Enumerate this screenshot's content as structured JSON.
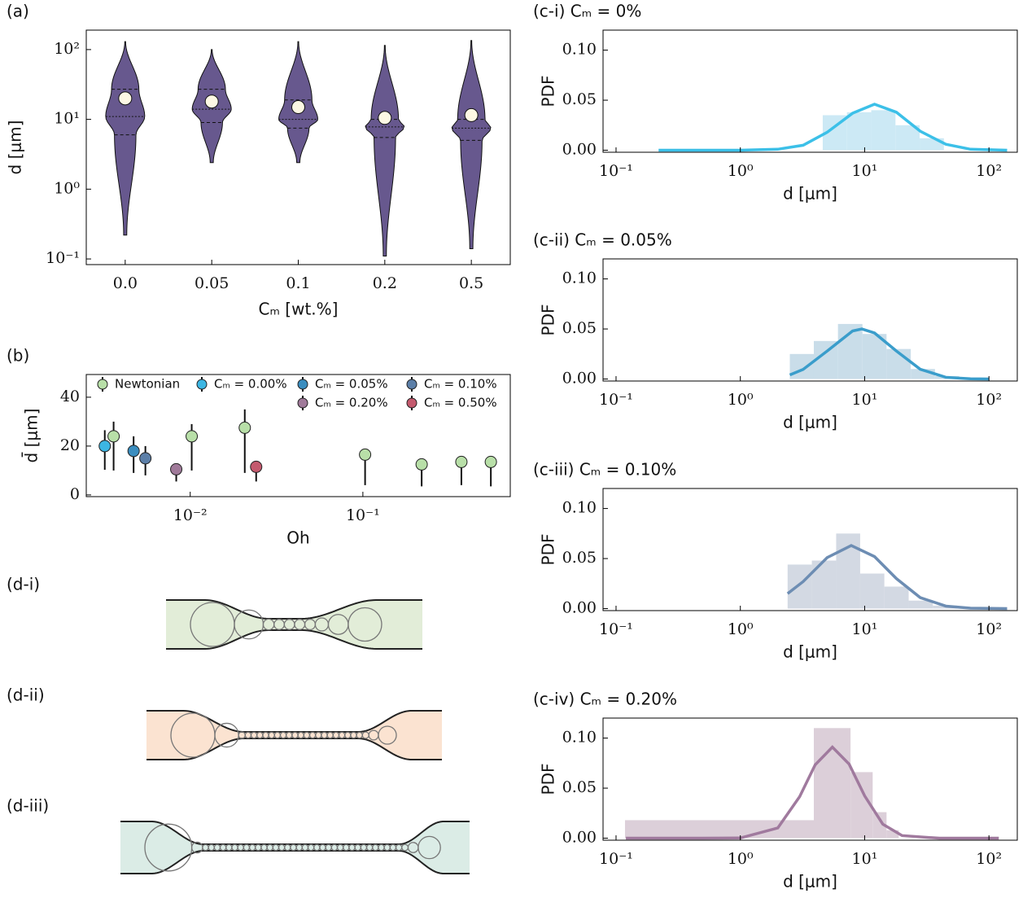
{
  "chart_data": [
    {
      "type": "violin",
      "label": "(a)",
      "xlabel": "Cₘ [wt.%]",
      "ylabel": "d [μm]",
      "categories": [
        "0.0",
        "0.05",
        "0.1",
        "0.2",
        "0.5"
      ],
      "log_y": true,
      "ylim": [
        0.083,
        190
      ],
      "yticks": [
        {
          "value": 0.1,
          "label": "10⁻¹"
        },
        {
          "value": 1,
          "label": "10⁰"
        },
        {
          "value": 10,
          "label": "10¹"
        },
        {
          "value": 100,
          "label": "10²"
        }
      ],
      "color": "#67588e",
      "mean_color": "#fdf8e4",
      "min": [
        0.22,
        2.4,
        2.4,
        0.11,
        0.14
      ],
      "q1": [
        6,
        9,
        7.5,
        5.5,
        5
      ],
      "median": [
        11,
        14,
        10,
        7.8,
        7.5
      ],
      "q3": [
        27,
        27,
        19,
        10,
        10
      ],
      "max": [
        130,
        100,
        130,
        115,
        135
      ],
      "mean": [
        20,
        18,
        15,
        10.5,
        11.5
      ]
    },
    {
      "type": "errorbar",
      "label": "(b)",
      "xlabel": "Oh",
      "ylabel": "d̄ [μm]",
      "log_x": true,
      "xlim": [
        0.0025,
        0.714
      ],
      "xticks": [
        {
          "value": 0.01,
          "label": "10⁻²"
        },
        {
          "value": 0.1,
          "label": "10⁻¹"
        }
      ],
      "ylim": [
        -0.7,
        49.3
      ],
      "yticks": [
        0,
        20,
        40
      ],
      "legend": "top",
      "series": [
        {
          "name": "Newtonian",
          "color": "#b8dfa8",
          "x": [
            0.0036,
            0.0102,
            0.0207,
            0.103,
            0.219,
            0.372,
            0.551
          ],
          "values": [
            24,
            24,
            27.5,
            16.5,
            12.5,
            13.5,
            13.5
          ],
          "err_low": [
            14,
            14,
            18.5,
            12.5,
            9,
            9.5,
            10
          ],
          "err_high": [
            6,
            5,
            7.5,
            0,
            0,
            0,
            0
          ]
        },
        {
          "name": "Cₘ = 0.00%",
          "color": "#3cb6e3",
          "x": [
            0.0032
          ],
          "values": [
            20
          ],
          "err_low": [
            9.7
          ],
          "err_high": [
            6.5
          ]
        },
        {
          "name": "Cₘ = 0.05%",
          "color": "#3a8dbf",
          "x": [
            0.0047
          ],
          "values": [
            18
          ],
          "err_low": [
            9
          ],
          "err_high": [
            6
          ]
        },
        {
          "name": "Cₘ = 0.10%",
          "color": "#5c7fa8",
          "x": [
            0.0055
          ],
          "values": [
            15
          ],
          "err_low": [
            7
          ],
          "err_high": [
            5
          ]
        },
        {
          "name": "Cₘ = 0.20%",
          "color": "#a07a9a",
          "x": [
            0.0083
          ],
          "values": [
            10.5
          ],
          "err_low": [
            5
          ],
          "err_high": [
            0
          ]
        },
        {
          "name": "Cₘ = 0.50%",
          "color": "#c45a6e",
          "x": [
            0.0241
          ],
          "values": [
            11.5
          ],
          "err_low": [
            6
          ],
          "err_high": [
            0
          ]
        }
      ]
    },
    {
      "type": "histogram",
      "title": "(c-i) Cₘ = 0%",
      "xlabel": "d [μm]",
      "ylabel": "PDF",
      "log_x": true,
      "xlim": [
        0.0786,
        169
      ],
      "xticks": [
        {
          "value": 0.1,
          "label": "10⁻¹"
        },
        {
          "value": 1,
          "label": "10⁰"
        },
        {
          "value": 10,
          "label": "10¹"
        },
        {
          "value": 100,
          "label": "10²"
        }
      ],
      "ylim": [
        -0.002,
        0.12
      ],
      "yticks": [
        {
          "value": 0,
          "label": "0.00"
        },
        0.05,
        {
          "value": 0.1,
          "label": "0.10"
        }
      ],
      "bar_color": "#cce9f5",
      "bins": [
        4.6,
        7.2,
        11.3,
        17.7,
        27.7,
        43.4
      ],
      "counts": [
        0.035,
        0.038,
        0.04,
        0.025,
        0.012
      ],
      "fit": {
        "color": "#3cc0e8",
        "x": [
          0.22,
          0.5,
          1,
          2,
          3.2,
          5,
          8,
          12,
          18,
          28,
          45,
          71,
          140
        ],
        "values": [
          0,
          0,
          0,
          0.001,
          0.005,
          0.018,
          0.037,
          0.046,
          0.038,
          0.019,
          0.006,
          0.001,
          0
        ]
      }
    },
    {
      "type": "histogram",
      "title": "(c-ii) Cₘ = 0.05%",
      "xlabel": "d [μm]",
      "ylabel": "PDF",
      "log_x": true,
      "xlim": [
        0.0786,
        169
      ],
      "xticks": [
        {
          "value": 0.1,
          "label": "10⁻¹"
        },
        {
          "value": 1,
          "label": "10⁰"
        },
        {
          "value": 10,
          "label": "10¹"
        },
        {
          "value": 100,
          "label": "10²"
        }
      ],
      "ylim": [
        -0.002,
        0.12
      ],
      "yticks": [
        {
          "value": 0,
          "label": "0.00"
        },
        0.05,
        {
          "value": 0.1,
          "label": "0.10"
        }
      ],
      "bar_color": "#c9dde9",
      "bins": [
        2.5,
        3.9,
        6.1,
        9.6,
        15,
        23.5,
        36.8,
        57.6
      ],
      "counts": [
        0.025,
        0.038,
        0.055,
        0.045,
        0.03,
        0.01,
        0.003
      ],
      "fit": {
        "color": "#3a9dcb",
        "x": [
          2.5,
          3.2,
          5,
          8,
          9.5,
          12,
          18,
          28,
          45,
          71,
          100
        ],
        "values": [
          0.0041,
          0.0096,
          0.028,
          0.048,
          0.05,
          0.046,
          0.028,
          0.0098,
          0.0017,
          0.0002,
          0
        ]
      }
    },
    {
      "type": "histogram",
      "title": "(c-iii) Cₘ = 0.10%",
      "xlabel": "d [μm]",
      "ylabel": "PDF",
      "log_x": true,
      "xlim": [
        0.0786,
        169
      ],
      "xticks": [
        {
          "value": 0.1,
          "label": "10⁻¹"
        },
        {
          "value": 1,
          "label": "10⁰"
        },
        {
          "value": 10,
          "label": "10¹"
        },
        {
          "value": 100,
          "label": "10²"
        }
      ],
      "ylim": [
        -0.002,
        0.12
      ],
      "yticks": [
        {
          "value": 0,
          "label": "0.00"
        },
        0.05,
        {
          "value": 0.1,
          "label": "0.10"
        }
      ],
      "bar_color": "#d3d9e3",
      "bins": [
        2.4,
        3.76,
        5.9,
        9.2,
        14.4,
        22.6,
        35.4,
        55.4
      ],
      "counts": [
        0.044,
        0.048,
        0.075,
        0.035,
        0.022,
        0.008,
        0.003
      ],
      "fit": {
        "color": "#6d8db3",
        "x": [
          2.4,
          3.2,
          5,
          7.8,
          12,
          18,
          28,
          45,
          71,
          140
        ],
        "values": [
          0.015,
          0.027,
          0.051,
          0.063,
          0.052,
          0.03,
          0.011,
          0.0025,
          0.0004,
          0
        ]
      }
    },
    {
      "type": "histogram",
      "title": "(c-iv) Cₘ = 0.20%",
      "xlabel": "d [μm]",
      "ylabel": "PDF",
      "log_x": true,
      "xlim": [
        0.0786,
        169
      ],
      "xticks": [
        {
          "value": 0.1,
          "label": "10⁻¹"
        },
        {
          "value": 1,
          "label": "10⁰"
        },
        {
          "value": 10,
          "label": "10¹"
        },
        {
          "value": 100,
          "label": "10²"
        }
      ],
      "ylim": [
        -0.002,
        0.12
      ],
      "yticks": [
        {
          "value": 0,
          "label": "0.00"
        },
        0.05,
        {
          "value": 0.1,
          "label": "0.10"
        }
      ],
      "bar_color": "#dccfd9",
      "bins": [
        0.118,
        3.9,
        7.7,
        11.6,
        15,
        18.8
      ],
      "counts": [
        0.018,
        0.11,
        0.066,
        0.026,
        0.008
      ],
      "fit": {
        "color": "#a07a9e",
        "x": [
          0.12,
          0.5,
          1,
          2,
          3,
          4,
          5.5,
          7.5,
          10,
          14,
          20,
          40,
          120
        ],
        "values": [
          0,
          0,
          0.0002,
          0.0102,
          0.0415,
          0.0733,
          0.091,
          0.074,
          0.0423,
          0.014,
          0.0026,
          0,
          0
        ]
      }
    }
  ],
  "diagram_labels": [
    "(d-i)",
    "(d-ii)",
    "(d-iii)"
  ]
}
